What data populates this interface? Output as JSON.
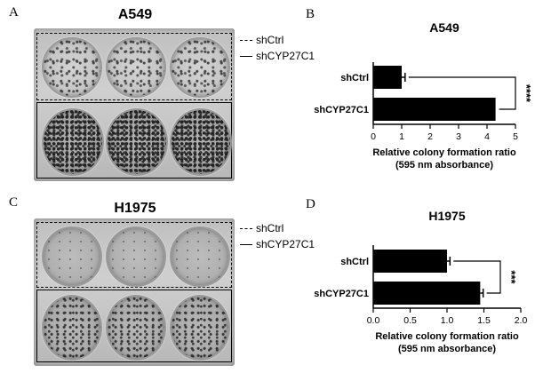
{
  "panels": {
    "A": {
      "letter": "A",
      "title": "A549",
      "legend": [
        "shCtrl",
        "shCYP27C1"
      ]
    },
    "B": {
      "letter": "B"
    },
    "C": {
      "letter": "C",
      "title": "H1975",
      "legend": [
        "shCtrl",
        "shCYP27C1"
      ]
    },
    "D": {
      "letter": "D"
    }
  },
  "chart_data": [
    {
      "type": "bar",
      "orientation": "horizontal",
      "title": "A549",
      "categories": [
        "shCtrl",
        "shCYP27C1"
      ],
      "values": [
        1.0,
        4.3
      ],
      "errors": [
        0.12,
        0.0
      ],
      "xlabel": "Relative colony formation ratio",
      "xlabel2": "(595 nm absorbance)",
      "xlim": [
        0,
        5
      ],
      "ticks": [
        "0",
        "1",
        "2",
        "3",
        "4",
        "5"
      ],
      "significance": "****",
      "bar_color": "#000000",
      "grid": false
    },
    {
      "type": "bar",
      "orientation": "horizontal",
      "title": "H1975",
      "categories": [
        "shCtrl",
        "shCYP27C1"
      ],
      "values": [
        1.0,
        1.45
      ],
      "errors": [
        0.04,
        0.04
      ],
      "xlabel": "Relative colony formation ratio",
      "xlabel2": "(595 nm absorbance)",
      "xlim": [
        0,
        2.0
      ],
      "ticks": [
        "0.0",
        "0.5",
        "1.0",
        "1.5",
        "2.0"
      ],
      "significance": "***",
      "bar_color": "#000000",
      "grid": false
    }
  ]
}
